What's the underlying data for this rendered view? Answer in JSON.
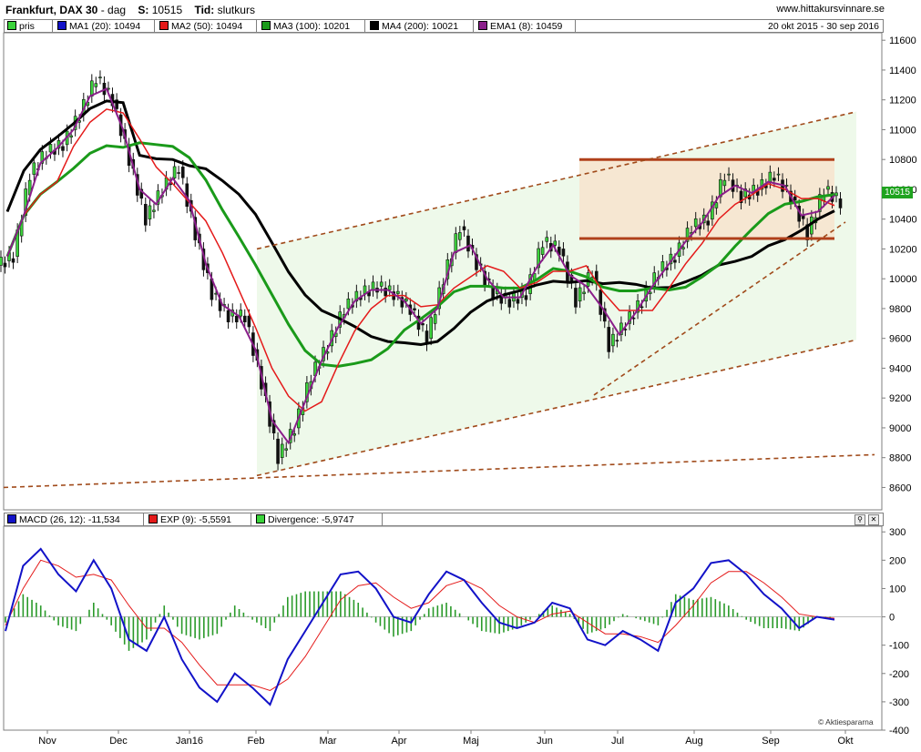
{
  "header": {
    "instrument": "Frankfurt, DAX 30",
    "period": "dag",
    "last_label": "S:",
    "last_value": "10515",
    "time_label": "Tid:",
    "time_value": "slutkurs",
    "website": "www.hittakursvinnare.se"
  },
  "legend_top": {
    "items": [
      {
        "label": "pris",
        "color": "#3bd33b"
      },
      {
        "label": "MA1 (20): 10494",
        "color": "#1212c8"
      },
      {
        "label": "MA2 (50): 10494",
        "color": "#e41a1a"
      },
      {
        "label": "MA3 (100): 10201",
        "color": "#1a9a1a"
      },
      {
        "label": "MA4 (200): 10021",
        "color": "#000000"
      },
      {
        "label": "EMA1 (8): 10459",
        "color": "#8a1e8a"
      }
    ],
    "date_range": "20 okt 2015 - 30 sep 2016"
  },
  "legend_bottom": {
    "items": [
      {
        "label": "MACD (26, 12): -11,534",
        "color": "#1212c8"
      },
      {
        "label": "EXP (9): -5,5591",
        "color": "#e41a1a"
      },
      {
        "label": "Divergence: -5,9747",
        "color": "#3bd33b"
      }
    ]
  },
  "price_tag": "10515",
  "credit": "© Aktiespararna",
  "chart_data": [
    {
      "type": "candlestick",
      "x_labels": [
        "Nov",
        "Dec",
        "Jan16",
        "Feb",
        "Mar",
        "Apr",
        "Maj",
        "Jun",
        "Jul",
        "Aug",
        "Sep",
        "Okt"
      ],
      "y_ticks": [
        8600,
        8800,
        9000,
        9200,
        9400,
        9600,
        9800,
        10000,
        10200,
        10400,
        10600,
        10800,
        11000,
        11200,
        11400,
        11600
      ],
      "ylim": [
        8450,
        11650
      ],
      "close_series": [
        {
          "month": "Oct-20",
          "value": 10150
        },
        {
          "month": "Oct-26",
          "value": 10700
        },
        {
          "month": "Nov-02",
          "value": 10850
        },
        {
          "month": "Nov-09",
          "value": 10900
        },
        {
          "month": "Nov-16",
          "value": 11100
        },
        {
          "month": "Nov-23",
          "value": 11350
        },
        {
          "month": "Nov-30",
          "value": 11200
        },
        {
          "month": "Dec-04",
          "value": 10800
        },
        {
          "month": "Dec-10",
          "value": 10400
        },
        {
          "month": "Dec-16",
          "value": 10600
        },
        {
          "month": "Dec-22",
          "value": 10750
        },
        {
          "month": "Jan-04",
          "value": 10300
        },
        {
          "month": "Jan-11",
          "value": 9900
        },
        {
          "month": "Jan-18",
          "value": 9750
        },
        {
          "month": "Jan-25",
          "value": 9750
        },
        {
          "month": "Feb-01",
          "value": 9300
        },
        {
          "month": "Feb-08",
          "value": 8800
        },
        {
          "month": "Feb-12",
          "value": 9000
        },
        {
          "month": "Feb-19",
          "value": 9350
        },
        {
          "month": "Feb-26",
          "value": 9550
        },
        {
          "month": "Mar-04",
          "value": 9800
        },
        {
          "month": "Mar-11",
          "value": 9900
        },
        {
          "month": "Mar-18",
          "value": 9950
        },
        {
          "month": "Mar-25",
          "value": 9900
        },
        {
          "month": "Apr-01",
          "value": 9800
        },
        {
          "month": "Apr-08",
          "value": 9600
        },
        {
          "month": "Apr-15",
          "value": 10000
        },
        {
          "month": "Apr-22",
          "value": 10350
        },
        {
          "month": "Apr-29",
          "value": 10100
        },
        {
          "month": "May-06",
          "value": 9900
        },
        {
          "month": "May-13",
          "value": 9850
        },
        {
          "month": "May-20",
          "value": 9900
        },
        {
          "month": "May-27",
          "value": 10250
        },
        {
          "month": "Jun-03",
          "value": 10200
        },
        {
          "month": "Jun-10",
          "value": 9850
        },
        {
          "month": "Jun-17",
          "value": 10050
        },
        {
          "month": "Jun-24",
          "value": 9550
        },
        {
          "month": "Jul-01",
          "value": 9700
        },
        {
          "month": "Jul-08",
          "value": 9850
        },
        {
          "month": "Jul-15",
          "value": 10050
        },
        {
          "month": "Jul-22",
          "value": 10150
        },
        {
          "month": "Jul-29",
          "value": 10350
        },
        {
          "month": "Aug-05",
          "value": 10400
        },
        {
          "month": "Aug-12",
          "value": 10700
        },
        {
          "month": "Aug-19",
          "value": 10550
        },
        {
          "month": "Aug-26",
          "value": 10600
        },
        {
          "month": "Sep-02",
          "value": 10700
        },
        {
          "month": "Sep-09",
          "value": 10550
        },
        {
          "month": "Sep-16",
          "value": 10300
        },
        {
          "month": "Sep-23",
          "value": 10600
        },
        {
          "month": "Sep-30",
          "value": 10515
        }
      ],
      "resistance_level": 10800,
      "support_level": 10270,
      "moving_averages": [
        "MA1 (20)",
        "MA2 (50)",
        "MA3 (100)",
        "MA4 (200)",
        "EMA1 (8)"
      ]
    },
    {
      "type": "line",
      "name_lines": [
        "MACD (26, 12)",
        "EXP (9)"
      ],
      "divergence": "Divergence",
      "y_ticks": [
        -400,
        -300,
        -200,
        -100,
        0,
        100,
        200,
        300
      ],
      "ylim": [
        -400,
        320
      ],
      "macd": [
        -50,
        180,
        240,
        150,
        90,
        200,
        100,
        -80,
        -120,
        0,
        -150,
        -250,
        -300,
        -200,
        -250,
        -310,
        -150,
        -50,
        50,
        150,
        160,
        100,
        0,
        -20,
        80,
        160,
        130,
        50,
        -20,
        -40,
        -20,
        50,
        30,
        -80,
        -100,
        -50,
        -80,
        -120,
        50,
        100,
        190,
        200,
        150,
        80,
        30,
        -40,
        0,
        -10
      ],
      "signal": [
        -30,
        100,
        200,
        180,
        140,
        150,
        130,
        40,
        -40,
        -40,
        -90,
        -170,
        -240,
        -240,
        -240,
        -260,
        -220,
        -140,
        -40,
        60,
        110,
        120,
        70,
        30,
        50,
        110,
        130,
        100,
        40,
        0,
        -20,
        10,
        20,
        -20,
        -60,
        -60,
        -70,
        -90,
        -30,
        40,
        120,
        160,
        160,
        120,
        70,
        10,
        0,
        -5
      ]
    }
  ]
}
